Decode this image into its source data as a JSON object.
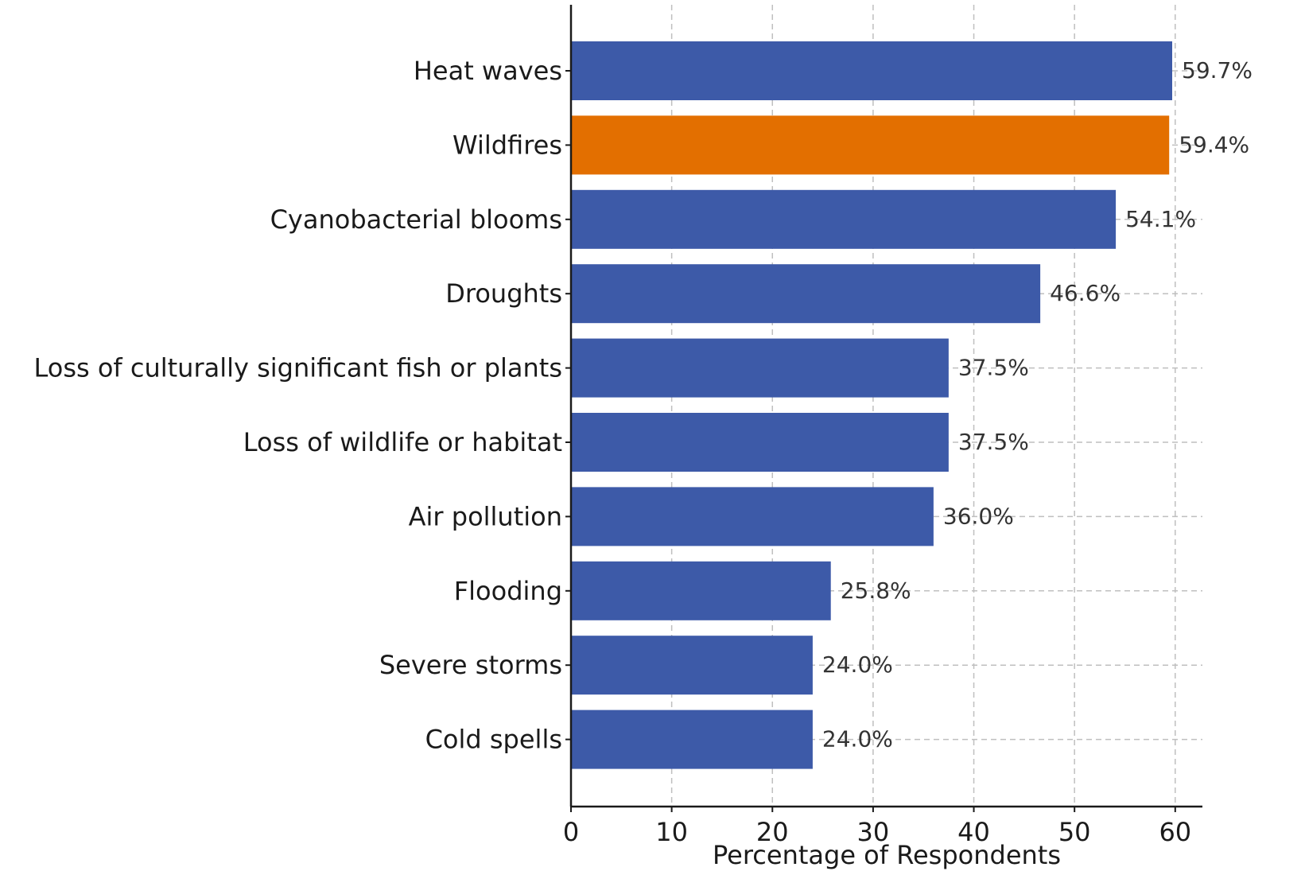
{
  "chart_data": {
    "type": "bar",
    "orientation": "horizontal",
    "categories": [
      "Heat waves",
      "Wildfires",
      "Cyanobacterial blooms",
      "Droughts",
      "Loss of culturally significant fish or plants",
      "Loss of wildlife or habitat",
      "Air pollution",
      "Flooding",
      "Severe storms",
      "Cold spells"
    ],
    "values": [
      59.7,
      59.4,
      54.1,
      46.6,
      37.5,
      37.5,
      36.0,
      25.8,
      24.0,
      24.0
    ],
    "value_labels": [
      "59.7%",
      "59.4%",
      "54.1%",
      "46.6%",
      "37.5%",
      "37.5%",
      "36.0%",
      "25.8%",
      "24.0%",
      "24.0%"
    ],
    "highlight_index": 1,
    "colors": {
      "default": "#3d5aa8",
      "highlight": "#e36f00"
    },
    "title": "",
    "xlabel": "Percentage of Respondents",
    "ylabel": "",
    "xlim": [
      0,
      62.7
    ],
    "xticks": [
      0,
      10,
      20,
      30,
      40,
      50,
      60
    ],
    "grid": true
  }
}
